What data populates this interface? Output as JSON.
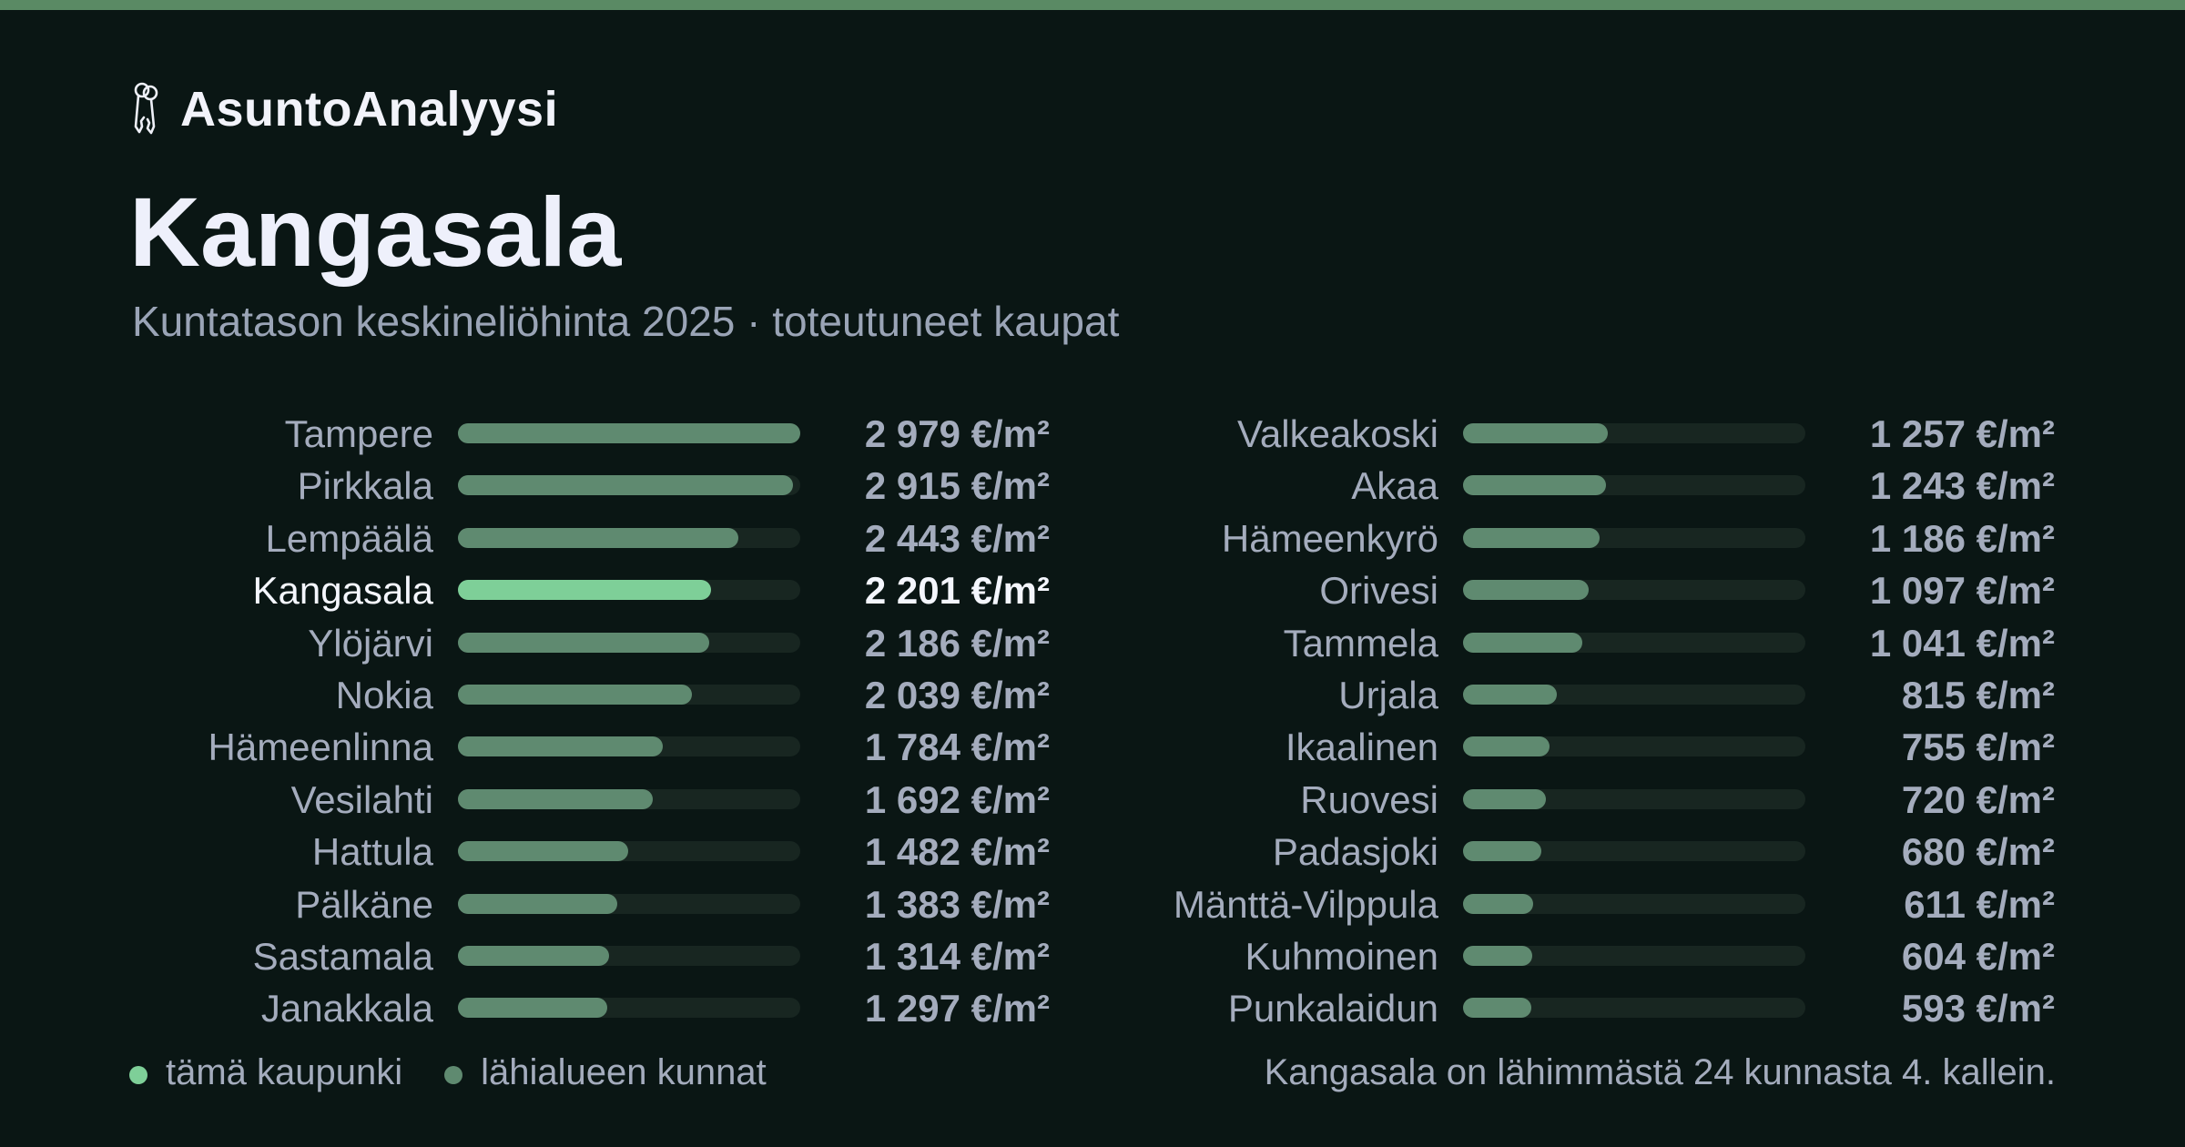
{
  "brand": {
    "name": "AsuntoAnalyysi",
    "icon": "keys-icon"
  },
  "title": "Kangasala",
  "subtitle": "Kuntatason keskineliöhinta 2025 · toteutuneet kaupat",
  "colors": {
    "background": "#0a1614",
    "accent_stripe": "#5a8a64",
    "highlight_bar": "#7ecf98",
    "bar": "#5f8a70",
    "track": "#182621",
    "text_muted": "#a4acbd",
    "text_strong": "#f4f6fd"
  },
  "legend": {
    "this_city": "tämä kaupunki",
    "nearby": "lähialueen kunnat"
  },
  "note": "Kangasala on lähimmästä 24 kunnasta 4. kallein.",
  "chart_data": {
    "type": "bar",
    "orientation": "horizontal",
    "unit": "€/m²",
    "highlight": "Kangasala",
    "xlim": [
      0,
      2979
    ],
    "legend_placement": "bottom-left",
    "grid": false,
    "categories": [
      "Tampere",
      "Pirkkala",
      "Lempäälä",
      "Kangasala",
      "Ylöjärvi",
      "Nokia",
      "Hämeenlinna",
      "Vesilahti",
      "Hattula",
      "Pälkäne",
      "Sastamala",
      "Janakkala",
      "Valkeakoski",
      "Akaa",
      "Hämeenkyrö",
      "Orivesi",
      "Tammela",
      "Urjala",
      "Ikaalinen",
      "Ruovesi",
      "Padasjoki",
      "Mänttä-Vilppula",
      "Kuhmoinen",
      "Punkalaidun"
    ],
    "values": [
      2979,
      2915,
      2443,
      2201,
      2186,
      2039,
      1784,
      1692,
      1482,
      1383,
      1314,
      1297,
      1257,
      1243,
      1186,
      1097,
      1041,
      815,
      755,
      720,
      680,
      611,
      604,
      593
    ],
    "labels": [
      "2 979 €/m²",
      "2 915 €/m²",
      "2 443 €/m²",
      "2 201 €/m²",
      "2 186 €/m²",
      "2 039 €/m²",
      "1 784 €/m²",
      "1 692 €/m²",
      "1 482 €/m²",
      "1 383 €/m²",
      "1 314 €/m²",
      "1 297 €/m²",
      "1 257 €/m²",
      "1 243 €/m²",
      "1 186 €/m²",
      "1 097 €/m²",
      "1 041 €/m²",
      "815 €/m²",
      "755 €/m²",
      "720 €/m²",
      "680 €/m²",
      "611 €/m²",
      "604 €/m²",
      "593 €/m²"
    ]
  }
}
